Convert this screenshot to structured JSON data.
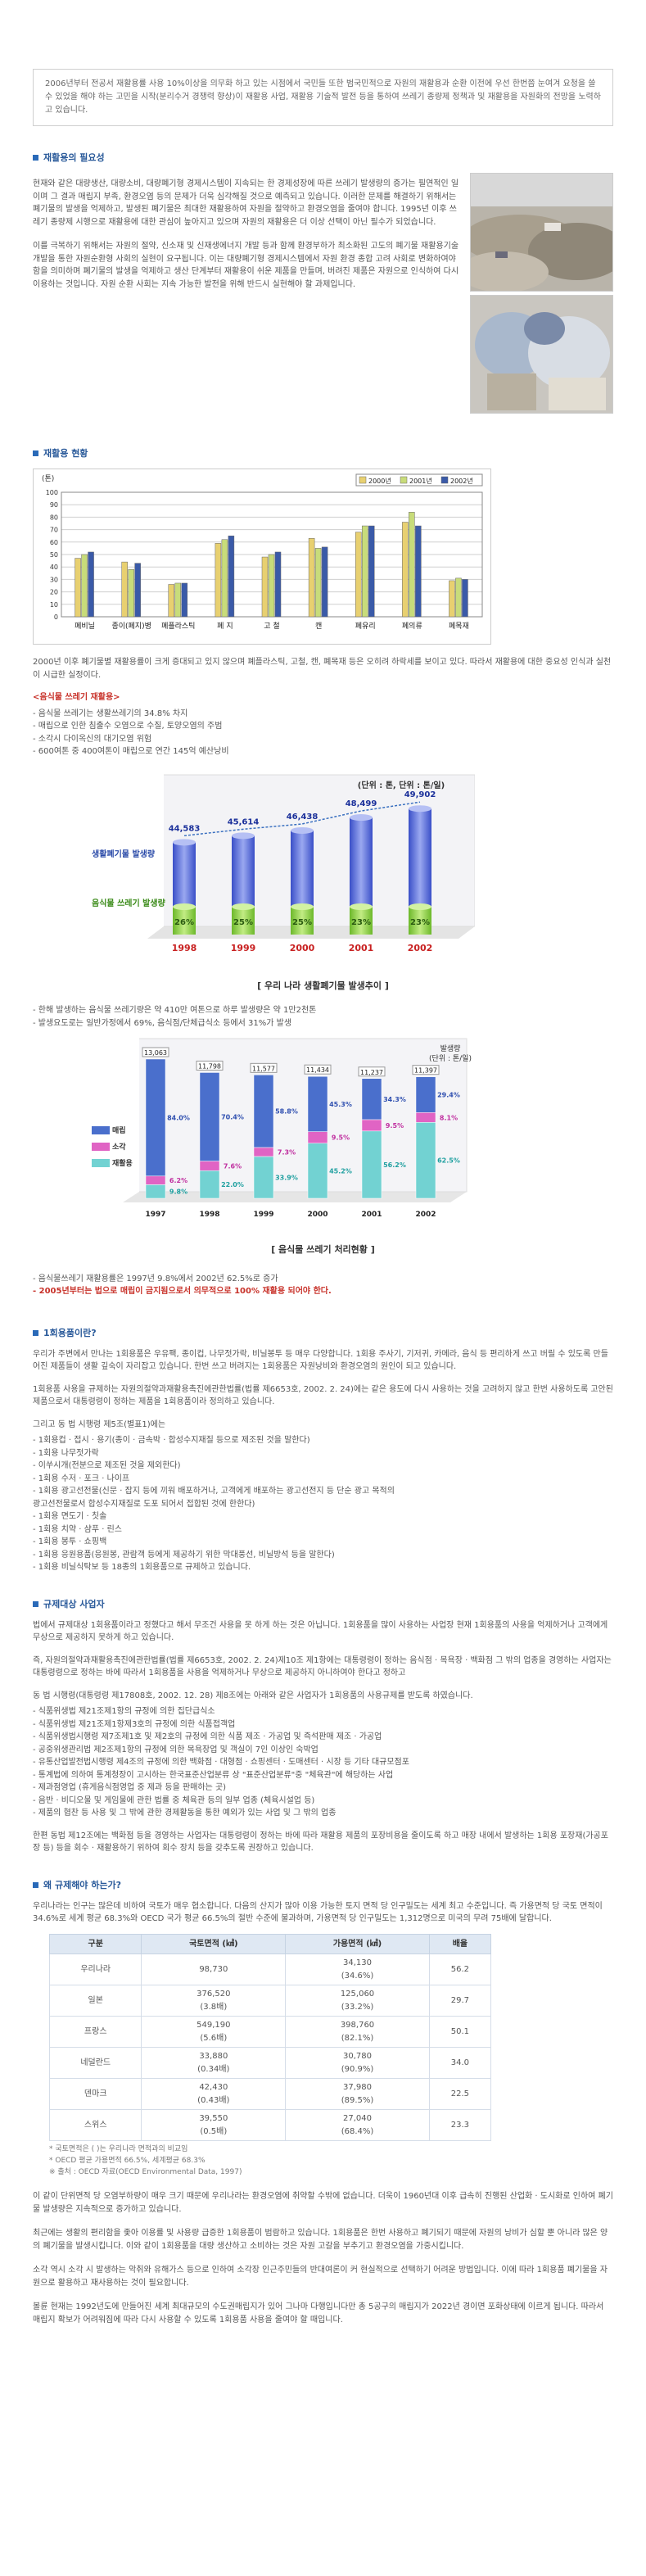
{
  "intro": "2006년부터 전공서 재활용률 사용 10%이상을 의무화 하고 있는 시점에서 국민들 또한 범국민적으로 자원의 재활용과 순환 이전에 우선 한번쯤 눈여겨 요청을 쓸 수 있었을 해야 하는 고민을 시작(분리수거 경쟁력 향상)이 재활용 사업, 재활용 기술적 발전 등을 통하여 쓰레기 종량제 정책과 및 재활용을 자원화의 전망을 노력하고 있습니다.",
  "sections": {
    "necessity": {
      "title": "재활용의 필요성",
      "p1": "현재와 같은 대량생산, 대량소비, 대량폐기형 경제시스템이 지속되는 한 경제성장에 따른 쓰레기 발생량의 증가는 필연적인 일이며 그 결과 매립지 부족, 환경오염 등의 문제가 더욱 심각해질 것으로 예측되고 있습니다. 이러한 문제를 해결하기 위해서는 폐기물의 발생을 억제하고, 발생된 폐기물은 최대한 재활용하여 자원을 절약하고 환경오염을 줄여야 합니다. 1995년 이후 쓰레기 종량제 시행으로 재활용에 대한 관심이 높아지고 있으며 자원의 재활용은 더 이상 선택이 아닌 필수가 되었습니다.",
      "p2": "이를 극복하기 위해서는 자원의 절약, 신소재 및 신재생에너지 개발 등과 함께 환경부하가 최소화된 고도의 폐기물 재활용기술 개발을 통한 자원순환형 사회의 실현이 요구됩니다. 이는 대량폐기형 경제시스템에서 자원 환경 종합 고려 사회로 변화하여야 함을 의미하며 폐기물의 발생을 억제하고 생산 단계부터 재활용이 쉬운 제품을 만들며, 버려진 제품은 자원으로 인식하여 다시 이용하는 것입니다. 자원 순환 사회는 지속 가능한 발전을 위해 반드시 실현해야 할 과제입니다.",
      "photo1_alt": "폐기물 사진",
      "photo2_alt": "분리수거 사진"
    },
    "status": {
      "title": "재활용 현황",
      "after_chart": "2000년 이후 폐기물별 재활용률이 크게 증대되고 있지 않으며 폐플라스틱, 고철, 캔, 폐목재 등은 오히려 하락세를 보이고 있다. 따라서 재활용에 대한 중요성 인식과 실천이 시급한 실정이다.",
      "food_title": "<음식물 쓰레기 재활용>",
      "food_items": [
        "- 음식물 쓰레기는 생활쓰레기의 34.8% 차지",
        "- 매립으로 인한 침출수 오염으로 수질, 토양오염의 주범",
        "- 소각시 다이옥신의 대기오염 위험",
        "- 600여톤 중 400여톤이 매립으로 연간 145억 예산낭비"
      ],
      "graph1_caption": "[ 우리 나라 생활폐기물 발생추이 ]",
      "between_items": [
        "- 한해 발생하는 음식물 쓰레기량은 약 410만 여톤으로 하루 발생량은 약 1만2천톤",
        "- 발생요도로는 일반가정에서 69%, 음식점/단체급식소 등에서 31%가 발생"
      ],
      "graph2_caption": "[ 음식물 쓰레기 처리현황 ]",
      "after_graph2": [
        "- 음식물쓰레기 재활용률은 1997년 9.8%에서 2002년 62.5%로 증가"
      ],
      "after_graph2_red": "- 2005년부터는 법으로 매립이 금지됨으로서 의무적으로 100% 재활용 되어야 한다."
    },
    "disposable": {
      "title": "1회용품이란?",
      "p1": "우리가 주변에서 만나는 1회용품은 우유팩, 종이컵, 나무젓가락, 비닐봉투 등 매우 다양합니다. 1회용 주사기, 기저귀, 카메라, 음식 등 편리하게 쓰고 버릴 수 있도록 만들어진 제품들이 생활 깊숙이 자리잡고 있습니다. 한번 쓰고 버려지는 1회용품은 자원낭비와 환경오염의 원인이 되고 있습니다.",
      "p2": "1회용품 사용을 규제하는 자원의절약과재활용촉진에관한법률(법률 제6653호, 2002. 2. 24)에는 같은 용도에 다시 사용하는 것을 고려하지 않고 한번 사용하도록 고안된 제품으로서 대통령령이 정하는 제품을 1회용품이라 정의하고 있습니다.",
      "list_title": "그리고 동 법 시행령 제5조(별표1)에는",
      "items": [
        "- 1회용컵 · 접시 · 용기(종이 · 금속박 · 합성수지재질 등으로 제조된 것을 말한다)",
        "- 1회용 나무젓가락",
        "- 이쑤시개(전분으로 제조된 것을 제외한다)",
        "- 1회용 수저 · 포크 · 나이프",
        "- 1회용 광고선전물(신문 · 잡지 등에 끼워 배포하거나, 고객에게 배포하는 광고선전지 등 단순 광고 목적의",
        "  광고선전물로서 합성수지재질로 도포 되어서 접합된 것에 한한다)",
        "- 1회용 면도기 · 칫솔",
        "- 1회용 치약 · 샴푸 · 린스",
        "- 1회용 봉투 · 쇼핑백",
        "- 1회용 응원용품(응원봉, 관람객 등에게 제공하기 위한 막대풍선, 비닐방석 등을 말한다)",
        "- 1회용 비닐식탁보 등 18종의 1회용품으로 규제하고 있습니다."
      ]
    },
    "regulated": {
      "title": "규제대상 사업자",
      "p1": "법에서 규제대상 1회용품이라고 정했다고 해서 무조건 사용을 못 하게 하는 것은 아닙니다. 1회용품을 많이 사용하는 사업장 현재 1회용품의 사용을 억제하거나 고객에게 무상으로 제공하지 못하게 하고 있습니다.",
      "p2": "즉, 자원의절약과재활용촉진에관한법률(법률 제6653호, 2002. 2. 24)제10조 제1항에는 대통령령이 정하는 음식점 · 목욕장 · 백화점 그 밖의 업종을 경영하는 사업자는 대통령령으로 정하는 바에 따라서 1회용품을 사용을 억제하거나 무상으로 제공하지 아니하여야 한다고 정하고",
      "p3": "동 법 시행령(대통령령 제17808호, 2002. 12. 28) 제8조에는 아래와 같은 사업자가 1회용품의 사용규제를 받도록 하였습니다.",
      "items": [
        "- 식품위생법 제21조제1항의 규정에 의한 집단급식소",
        "- 식품위생법 제21조제1항제3호의 규정에 의한 식품접객업",
        "- 식품위생법시행령 제7조제1호 및 제2호의 규정에 의한 식품 제조 · 가공업 및 즉석판매 제조 · 가공업",
        "- 공중위생관리법 제2조제1항의 규정에 의한 목욕장업 및 객실이 7인 이상인 숙박업",
        "- 유통산업발전법시행령 제4조의 규정에 의한 백화점 · 대형점 · 쇼핑센터 · 도매센터 · 시장 등 기타 대규모점포",
        "- 통계법에 의하여 통계청장이 고시하는 한국표준산업분류 상 \"표준산업분류\"중 \"체육관\"에 해당하는 사업",
        "- 제과점영업 (휴게음식점영업 중 제과 등을 판매하는 곳)",
        "- 음반 · 비디오물 및 게임물에 관한 법률 중 체육관 등의 일부 업종 (체육시설업 등)",
        "- 제품의 협찬 등 사용 및 그 밖에 관한 경제활동을 통한 예외가 있는 사업 및 그 밖의 업종"
      ],
      "p4": "한편 동법 제12조에는 백화점 등을 경영하는 사업자는 대통령령이 정하는 바에 따라 재활용 제품의 포장비용을 줄이도록 하고 매장 내에서 발생하는 1회용 포장재(가공포장 등) 등을 회수 · 재활용하기 위하여 회수 장치 등을 갖추도록 권장하고 있습니다."
    },
    "why": {
      "title": "왜 규제해야 하는가?",
      "p1": "우리나라는 인구는 많은데 비하여 국토가 매우 협소합니다. 다음의 산지가 많아 이용 가능한 토지 면적 당 인구밀도는 세계 최고 수준입니다. 즉 가용면적 당 국토 면적이 34.6%로 세계 평균 68.3%와 OECD 국가 평균 66.5%의 절반 수준에 불과하며, 가용면적 당 인구밀도는 1,312명으로 미국의 무려 75배에 달합니다.",
      "table": {
        "headers": [
          "구분",
          "국토면적 (㎢)",
          "가용면적 (㎢)",
          "배율"
        ],
        "rows": [
          [
            "우리나라",
            "98,730",
            "34,130\n(34.6%)",
            "56.2"
          ],
          [
            "일본",
            "376,520\n(3.8배)",
            "125,060\n(33.2%)",
            "29.7"
          ],
          [
            "프랑스",
            "549,190\n(5.6배)",
            "398,760\n(82.1%)",
            "50.1"
          ],
          [
            "네덜란드",
            "33,880\n(0.34배)",
            "30,780\n(90.9%)",
            "34.0"
          ],
          [
            "덴마크",
            "42,430\n(0.43배)",
            "37,980\n(89.5%)",
            "22.5"
          ],
          [
            "스위스",
            "39,550\n(0.5배)",
            "27,040\n(68.4%)",
            "23.3"
          ]
        ]
      },
      "notes": [
        "* 국토면적은 (  )는 우리나라 면적과의 비교임",
        "* OECD 평균 가용면적 66.5%, 세계평균 68.3%",
        "※ 출처 : OECD 자료(OECD Environmental Data, 1997)"
      ],
      "p2": "이 같이 단위면적 당 오염부하량이 매우 크기 때문에 우리나라는 환경오염에 취약할 수밖에 없습니다. 더욱이 1960년대 이후 급속히 진행된 산업화 · 도시화로 인하여 폐기물 발생량은 지속적으로 증가하고 있습니다.",
      "p3": "최근에는 생활의 편리함을 좇아 이용률 및 사용량 급증한 1회용품이 범람하고 있습니다. 1회용품은 한번 사용하고 폐기되기 때문에 자원의 낭비가 심할 뿐 아니라 많은 양의 폐기물을 발생시킵니다. 이와 같이 1회용품을 대량 생산하고 소비하는 것은 자원 고갈을 부추기고 환경오염을 가중시킵니다.",
      "p4": "소각 역시 소각 시 발생하는 악취와 유해가스 등으로 인하여 소각장 인근주민들의 반대여론이 커 현실적으로 선택하기 어려운 방법입니다. 이에 따라 1회용품 폐기물을 자원으로 활용하고 재사용하는 것이 필요합니다.",
      "p5": "볼륜 현재는 1992년도에 만들어진 세계 최대규모의 수도권매립지가 있어 그나마 다행입니다만 총 5공구의 매립지가 2022년 경이면 포화상태에 이르게 됩니다. 따라서 매립지 확보가 어려워짐에 따라 다시 사용할 수 있도록 1회용품 사용을 줄여야 할 때입니다."
    }
  },
  "chart_data": [
    {
      "type": "bar",
      "title": "",
      "ylabel": "(톤)",
      "ylim": [
        0,
        100
      ],
      "yticks": [
        0,
        10,
        20,
        30,
        40,
        50,
        60,
        70,
        80,
        90,
        100
      ],
      "legend_position": "top-right",
      "categories": [
        "폐비닐",
        "종이(폐지)병",
        "폐플라스틱",
        "폐 지",
        "고 철",
        "캔",
        "폐유리",
        "폐의류",
        "폐목재"
      ],
      "series": [
        {
          "name": "2000년",
          "color": "#e8d070",
          "values": [
            47,
            44,
            26,
            59,
            48,
            63,
            68,
            76,
            29
          ]
        },
        {
          "name": "2001년",
          "color": "#c8dc7a",
          "values": [
            50,
            38,
            27,
            62,
            50,
            55,
            73,
            84,
            31
          ]
        },
        {
          "name": "2002년",
          "color": "#3a5aa8",
          "values": [
            52,
            43,
            27,
            65,
            52,
            56,
            73,
            73,
            30
          ]
        }
      ]
    },
    {
      "type": "bar",
      "title": "우리 나라 생활폐기물 발생추이",
      "unit_label": "(단위 : 톤, 단위 : 톤/일)",
      "categories": [
        "1998",
        "1999",
        "2000",
        "2001",
        "2002"
      ],
      "series": [
        {
          "name": "생활폐기물 발생량",
          "values": [
            44583,
            45614,
            46438,
            48499,
            49902
          ]
        },
        {
          "name": "음식물 쓰레기 발생량",
          "percent_labels": [
            "26%",
            "25%",
            "25%",
            "23%",
            "23%"
          ]
        }
      ]
    },
    {
      "type": "bar",
      "title": "음식물 쓰레기 처리현황",
      "unit_label": "(단위 : 톤/일)",
      "unit_title": "발생량",
      "categories": [
        "1997",
        "1998",
        "1999",
        "2000",
        "2001",
        "2002"
      ],
      "totals": [
        13063,
        11798,
        11577,
        11434,
        11237,
        11397
      ],
      "series": [
        {
          "name": "매립",
          "color": "#5a7fd0",
          "values": [
            84.0,
            70.4,
            58.8,
            45.3,
            34.3,
            29.4
          ]
        },
        {
          "name": "소각",
          "color": "#e060c0",
          "values": [
            6.2,
            7.6,
            7.3,
            9.5,
            9.5,
            8.1
          ]
        },
        {
          "name": "재활용",
          "color": "#7cd6d6",
          "values": [
            9.8,
            22.0,
            33.9,
            45.2,
            56.2,
            62.5
          ]
        }
      ]
    }
  ]
}
